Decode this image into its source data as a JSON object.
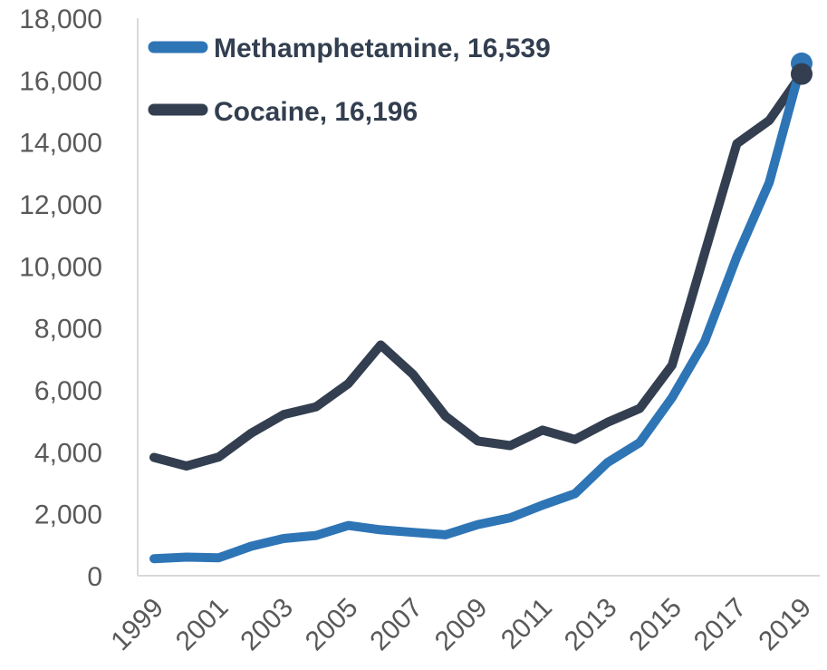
{
  "chart_data": {
    "type": "line",
    "title": "",
    "xlabel": "",
    "ylabel": "",
    "x": [
      1999,
      2000,
      2001,
      2002,
      2003,
      2004,
      2005,
      2006,
      2007,
      2008,
      2009,
      2010,
      2011,
      2012,
      2013,
      2014,
      2015,
      2016,
      2017,
      2018,
      2019
    ],
    "x_tick_labels": [
      "1999",
      "2001",
      "2003",
      "2005",
      "2007",
      "2009",
      "2011",
      "2013",
      "2015",
      "2017",
      "2019"
    ],
    "ylim": [
      0,
      18000
    ],
    "y_tick_labels": [
      "0",
      "2,000",
      "4,000",
      "6,000",
      "8,000",
      "10,000",
      "12,000",
      "14,000",
      "16,000",
      "18,000"
    ],
    "grid": false,
    "legend_position": "top-left",
    "series": [
      {
        "name": "Methamphetamine, 16,539",
        "color": "#2e75b6",
        "values": [
          550,
          600,
          580,
          950,
          1200,
          1300,
          1620,
          1480,
          1400,
          1320,
          1650,
          1870,
          2280,
          2650,
          3650,
          4300,
          5750,
          7550,
          10300,
          12700,
          16539
        ]
      },
      {
        "name": "Cocaine, 16,196",
        "color": "#333f50",
        "values": [
          3820,
          3540,
          3830,
          4600,
          5200,
          5450,
          6200,
          7450,
          6500,
          5150,
          4350,
          4200,
          4700,
          4400,
          4950,
          5400,
          6800,
          10400,
          13950,
          14700,
          16196
        ]
      }
    ]
  }
}
